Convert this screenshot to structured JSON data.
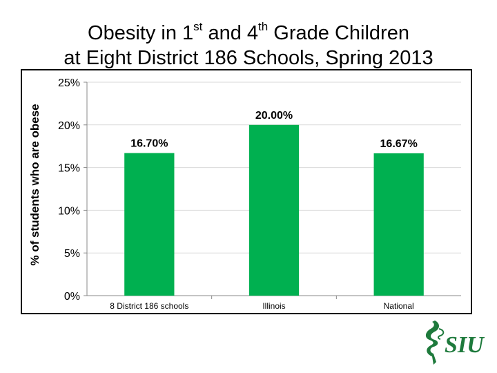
{
  "title": {
    "line1_part1": "Obesity in 1",
    "line1_sup1": "st",
    "line1_part2": " and 4",
    "line1_sup2": "th",
    "line1_part3": " Grade Children",
    "line2": "at Eight District 186 Schools, Spring 2013"
  },
  "chart_data": {
    "type": "bar",
    "categories": [
      "8 District 186 schools",
      "Illinois",
      "National"
    ],
    "values": [
      16.7,
      20.0,
      16.67
    ],
    "data_labels": [
      "16.70%",
      "20.00%",
      "16.67%"
    ],
    "ylabel": "% of students who are obese",
    "xlabel": "",
    "ylim": [
      0,
      25
    ],
    "yticks": [
      "0%",
      "5%",
      "10%",
      "15%",
      "20%",
      "25%"
    ],
    "ytick_values": [
      0,
      5,
      10,
      15,
      20,
      25
    ],
    "grid": true,
    "legend": "none",
    "bar_color": "#00b050"
  },
  "logo": {
    "text": "SIU",
    "color": "#1e7a3c"
  }
}
